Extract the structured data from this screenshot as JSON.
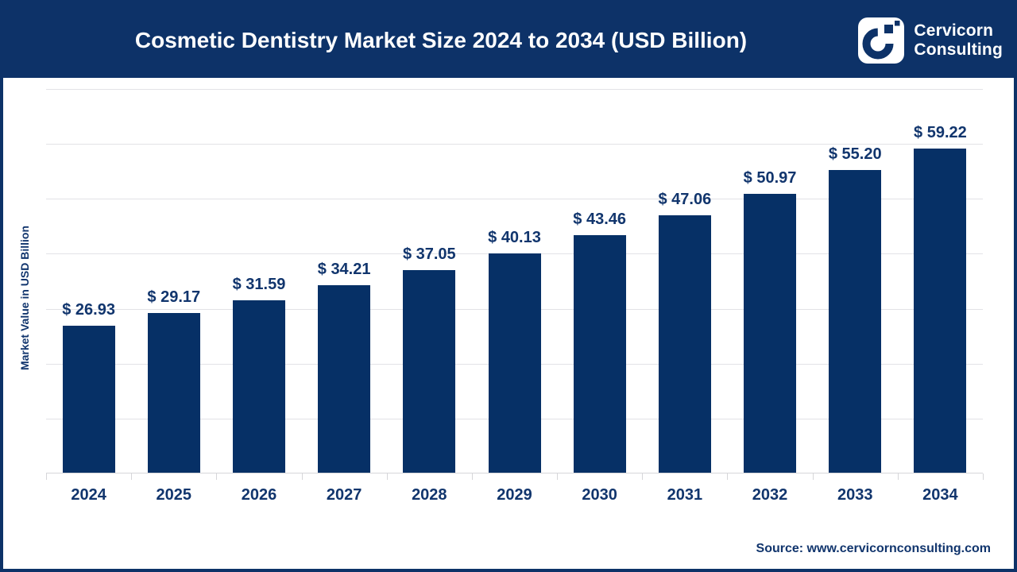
{
  "header": {
    "title": "Cosmetic Dentistry Market Size 2024 to 2034 (USD Billion)",
    "logo": {
      "icon": "cervicorn-c-logo",
      "line1": "Cervicorn",
      "line2": "Consulting"
    }
  },
  "chart_data": {
    "type": "bar",
    "title": "Cosmetic Dentistry Market Size 2024 to 2034 (USD Billion)",
    "categories": [
      "2024",
      "2025",
      "2026",
      "2027",
      "2028",
      "2029",
      "2030",
      "2031",
      "2032",
      "2033",
      "2034"
    ],
    "values": [
      26.93,
      29.17,
      31.59,
      34.21,
      37.05,
      40.13,
      43.46,
      47.06,
      50.97,
      55.2,
      59.22
    ],
    "value_labels": [
      "$ 26.93",
      "$ 29.17",
      "$ 31.59",
      "$ 34.21",
      "$ 37.05",
      "$ 40.13",
      "$ 43.46",
      "$ 47.06",
      "$ 50.97",
      "$ 55.20",
      "$ 59.22"
    ],
    "xlabel": "",
    "ylabel": "Market Value in USD Billion",
    "ylim": [
      0,
      70
    ],
    "gridline_step": 10,
    "grid": true,
    "legend": false
  },
  "footer": {
    "source": "Source: www.cervicornconsulting.com"
  },
  "colors": {
    "header_bg": "#0D3268",
    "bar": "#063066",
    "text": "#11356D",
    "gridline": "#E2E2E6",
    "axis": "#D6D6D9"
  }
}
